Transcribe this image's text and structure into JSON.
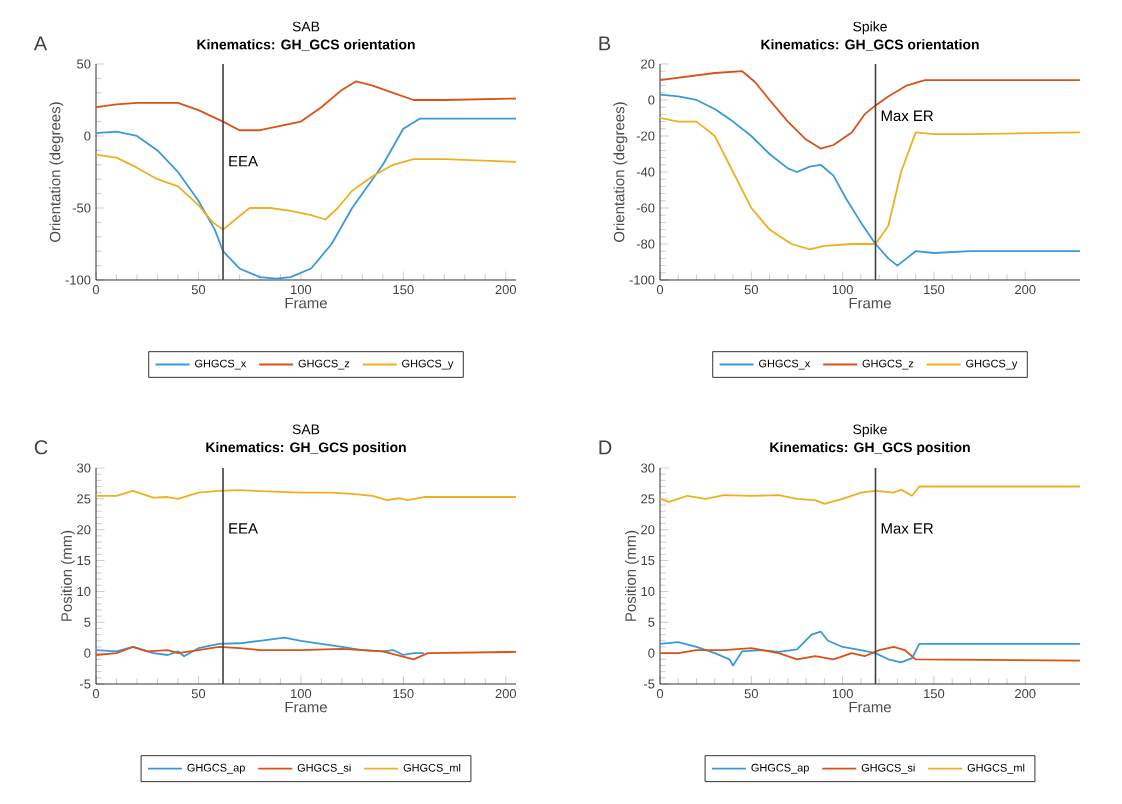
{
  "chart_data": [
    {
      "type": "line",
      "title": "SAB",
      "subtitle": "Kinematics: GH_GCS orientation",
      "xlabel": "Frame",
      "ylabel": "Orientation (degrees)",
      "annotations": [
        "A"
      ],
      "xlim": [
        0,
        205
      ],
      "ylim": [
        -100,
        50
      ],
      "xticks": [
        0,
        50,
        100,
        150,
        200
      ],
      "yticks": [
        -100,
        -50,
        0,
        50
      ],
      "legend": "bottom",
      "ref_lines": [
        {
          "axis": "x",
          "value": 62,
          "label": "EEA",
          "color": "#404040"
        }
      ],
      "series": [
        {
          "name": "GHGCS_x",
          "color": "#3a9ad9",
          "x": [
            0,
            10,
            20,
            30,
            40,
            50,
            58,
            62,
            70,
            80,
            88,
            95,
            105,
            115,
            125,
            140,
            150,
            158,
            170,
            205
          ],
          "values": [
            2,
            3,
            0,
            -10,
            -25,
            -45,
            -65,
            -80,
            -92,
            -98,
            -99,
            -98,
            -92,
            -75,
            -50,
            -20,
            5,
            12,
            12,
            12
          ]
        },
        {
          "name": "GHGCS_z",
          "color": "#d95319",
          "x": [
            0,
            10,
            20,
            40,
            50,
            62,
            70,
            80,
            90,
            100,
            110,
            120,
            127,
            135,
            145,
            155,
            170,
            205
          ],
          "values": [
            20,
            22,
            23,
            23,
            18,
            10,
            4,
            4,
            7,
            10,
            20,
            32,
            38,
            35,
            30,
            25,
            25,
            26
          ]
        },
        {
          "name": "GHGCS_y",
          "color": "#edb120",
          "x": [
            0,
            10,
            20,
            30,
            40,
            50,
            57,
            62,
            68,
            75,
            85,
            95,
            105,
            112,
            118,
            125,
            135,
            145,
            155,
            170,
            205
          ],
          "values": [
            -13,
            -15,
            -22,
            -30,
            -35,
            -48,
            -60,
            -65,
            -58,
            -50,
            -50,
            -52,
            -55,
            -58,
            -50,
            -38,
            -28,
            -20,
            -16,
            -16,
            -18
          ]
        }
      ]
    },
    {
      "type": "line",
      "title": "Spike",
      "subtitle": "Kinematics: GH_GCS orientation",
      "xlabel": "Frame",
      "ylabel": "Orientation (degrees)",
      "annotations": [
        "B"
      ],
      "xlim": [
        0,
        230
      ],
      "ylim": [
        -100,
        20
      ],
      "xticks": [
        0,
        50,
        100,
        150,
        200
      ],
      "yticks": [
        -100,
        -80,
        -60,
        -40,
        -20,
        0,
        20
      ],
      "legend": "bottom",
      "ref_lines": [
        {
          "axis": "x",
          "value": 118,
          "label": "Max ER",
          "color": "#404040"
        }
      ],
      "series": [
        {
          "name": "GHGCS_x",
          "color": "#3a9ad9",
          "x": [
            0,
            10,
            20,
            30,
            40,
            50,
            60,
            70,
            75,
            82,
            88,
            95,
            102,
            110,
            118,
            125,
            130,
            135,
            140,
            150,
            170,
            230
          ],
          "values": [
            3,
            2,
            0,
            -5,
            -12,
            -20,
            -30,
            -38,
            -40,
            -37,
            -36,
            -42,
            -55,
            -68,
            -80,
            -88,
            -92,
            -88,
            -84,
            -85,
            -84,
            -84
          ]
        },
        {
          "name": "GHGCS_z",
          "color": "#d95319",
          "x": [
            0,
            15,
            30,
            45,
            52,
            60,
            70,
            80,
            88,
            95,
            105,
            112,
            118,
            125,
            135,
            145,
            170,
            230
          ],
          "values": [
            11,
            13,
            15,
            16,
            10,
            0,
            -12,
            -22,
            -27,
            -25,
            -18,
            -8,
            -3,
            2,
            8,
            11,
            11,
            11
          ]
        },
        {
          "name": "GHGCS_y",
          "color": "#edb120",
          "x": [
            0,
            10,
            20,
            30,
            40,
            50,
            60,
            72,
            82,
            90,
            105,
            118,
            125,
            132,
            140,
            150,
            170,
            230
          ],
          "values": [
            -10,
            -12,
            -12,
            -20,
            -40,
            -60,
            -72,
            -80,
            -83,
            -81,
            -80,
            -80,
            -70,
            -40,
            -18,
            -19,
            -19,
            -18
          ]
        }
      ]
    },
    {
      "type": "line",
      "title": "SAB",
      "subtitle": "Kinematics: GH_GCS position",
      "xlabel": "Frame",
      "ylabel": "Position (mm)",
      "annotations": [
        "C"
      ],
      "xlim": [
        0,
        205
      ],
      "ylim": [
        -5,
        30
      ],
      "xticks": [
        0,
        50,
        100,
        150,
        200
      ],
      "yticks": [
        -5,
        0,
        5,
        10,
        15,
        20,
        25,
        30
      ],
      "legend": "bottom",
      "ref_lines": [
        {
          "axis": "x",
          "value": 62,
          "label": "EEA",
          "color": "#404040"
        }
      ],
      "series": [
        {
          "name": "GHGCS_ap",
          "color": "#3a9ad9",
          "x": [
            0,
            10,
            18,
            28,
            35,
            40,
            43,
            50,
            60,
            70,
            80,
            92,
            100,
            110,
            120,
            130,
            140,
            145,
            150,
            155,
            160
          ],
          "values": [
            0.5,
            0.3,
            1,
            0,
            -0.3,
            0.3,
            -0.5,
            0.8,
            1.5,
            1.6,
            2,
            2.5,
            2,
            1.5,
            1,
            0.5,
            0.3,
            0.5,
            -0.3,
            0,
            0
          ]
        },
        {
          "name": "GHGCS_si",
          "color": "#d95319",
          "x": [
            0,
            10,
            18,
            25,
            35,
            40,
            50,
            60,
            70,
            80,
            100,
            120,
            140,
            155,
            162,
            205
          ],
          "values": [
            -0.3,
            0,
            1,
            0.3,
            0.5,
            0,
            0.5,
            1,
            0.8,
            0.5,
            0.5,
            0.7,
            0.3,
            -1,
            0,
            0.2
          ]
        },
        {
          "name": "GHGCS_ml",
          "color": "#edb120",
          "x": [
            0,
            10,
            18,
            28,
            35,
            40,
            50,
            60,
            70,
            85,
            100,
            115,
            125,
            135,
            142,
            148,
            152,
            160,
            205
          ],
          "values": [
            25.5,
            25.5,
            26.3,
            25.2,
            25.3,
            25,
            26,
            26.3,
            26.4,
            26.2,
            26,
            26,
            25.8,
            25.5,
            24.8,
            25.1,
            24.8,
            25.3,
            25.3
          ]
        }
      ]
    },
    {
      "type": "line",
      "title": "Spike",
      "subtitle": "Kinematics: GH_GCS position",
      "xlabel": "Frame",
      "ylabel": "Position (mm)",
      "annotations": [
        "D"
      ],
      "xlim": [
        0,
        230
      ],
      "ylim": [
        -5,
        30
      ],
      "xticks": [
        0,
        50,
        100,
        150,
        200
      ],
      "yticks": [
        -5,
        0,
        5,
        10,
        15,
        20,
        25,
        30
      ],
      "legend": "bottom",
      "ref_lines": [
        {
          "axis": "x",
          "value": 118,
          "label": "Max ER",
          "color": "#404040"
        }
      ],
      "series": [
        {
          "name": "GHGCS_ap",
          "color": "#3a9ad9",
          "x": [
            0,
            10,
            20,
            30,
            38,
            40,
            45,
            55,
            65,
            75,
            83,
            88,
            92,
            100,
            110,
            118,
            125,
            132,
            138,
            142,
            230
          ],
          "values": [
            1.5,
            1.8,
            1,
            0,
            -1,
            -2,
            0.3,
            0.5,
            0.2,
            0.6,
            3,
            3.5,
            2,
            1,
            0.5,
            0,
            -1,
            -1.5,
            -0.8,
            1.5,
            1.5
          ]
        },
        {
          "name": "GHGCS_si",
          "color": "#d95319",
          "x": [
            0,
            10,
            20,
            35,
            50,
            65,
            75,
            85,
            95,
            105,
            112,
            120,
            128,
            134,
            140,
            230
          ],
          "values": [
            0,
            0,
            0.5,
            0.5,
            0.8,
            0,
            -1,
            -0.5,
            -1,
            0,
            -0.5,
            0.5,
            1,
            0.5,
            -1,
            -1.2
          ]
        },
        {
          "name": "GHGCS_ml",
          "color": "#edb120",
          "x": [
            0,
            5,
            15,
            25,
            35,
            50,
            65,
            75,
            85,
            90,
            100,
            110,
            118,
            128,
            132,
            138,
            142,
            230
          ],
          "values": [
            25,
            24.5,
            25.5,
            25,
            25.6,
            25.5,
            25.6,
            25,
            24.8,
            24.2,
            25,
            26,
            26.3,
            26,
            26.5,
            25.5,
            27,
            27
          ]
        }
      ]
    }
  ]
}
